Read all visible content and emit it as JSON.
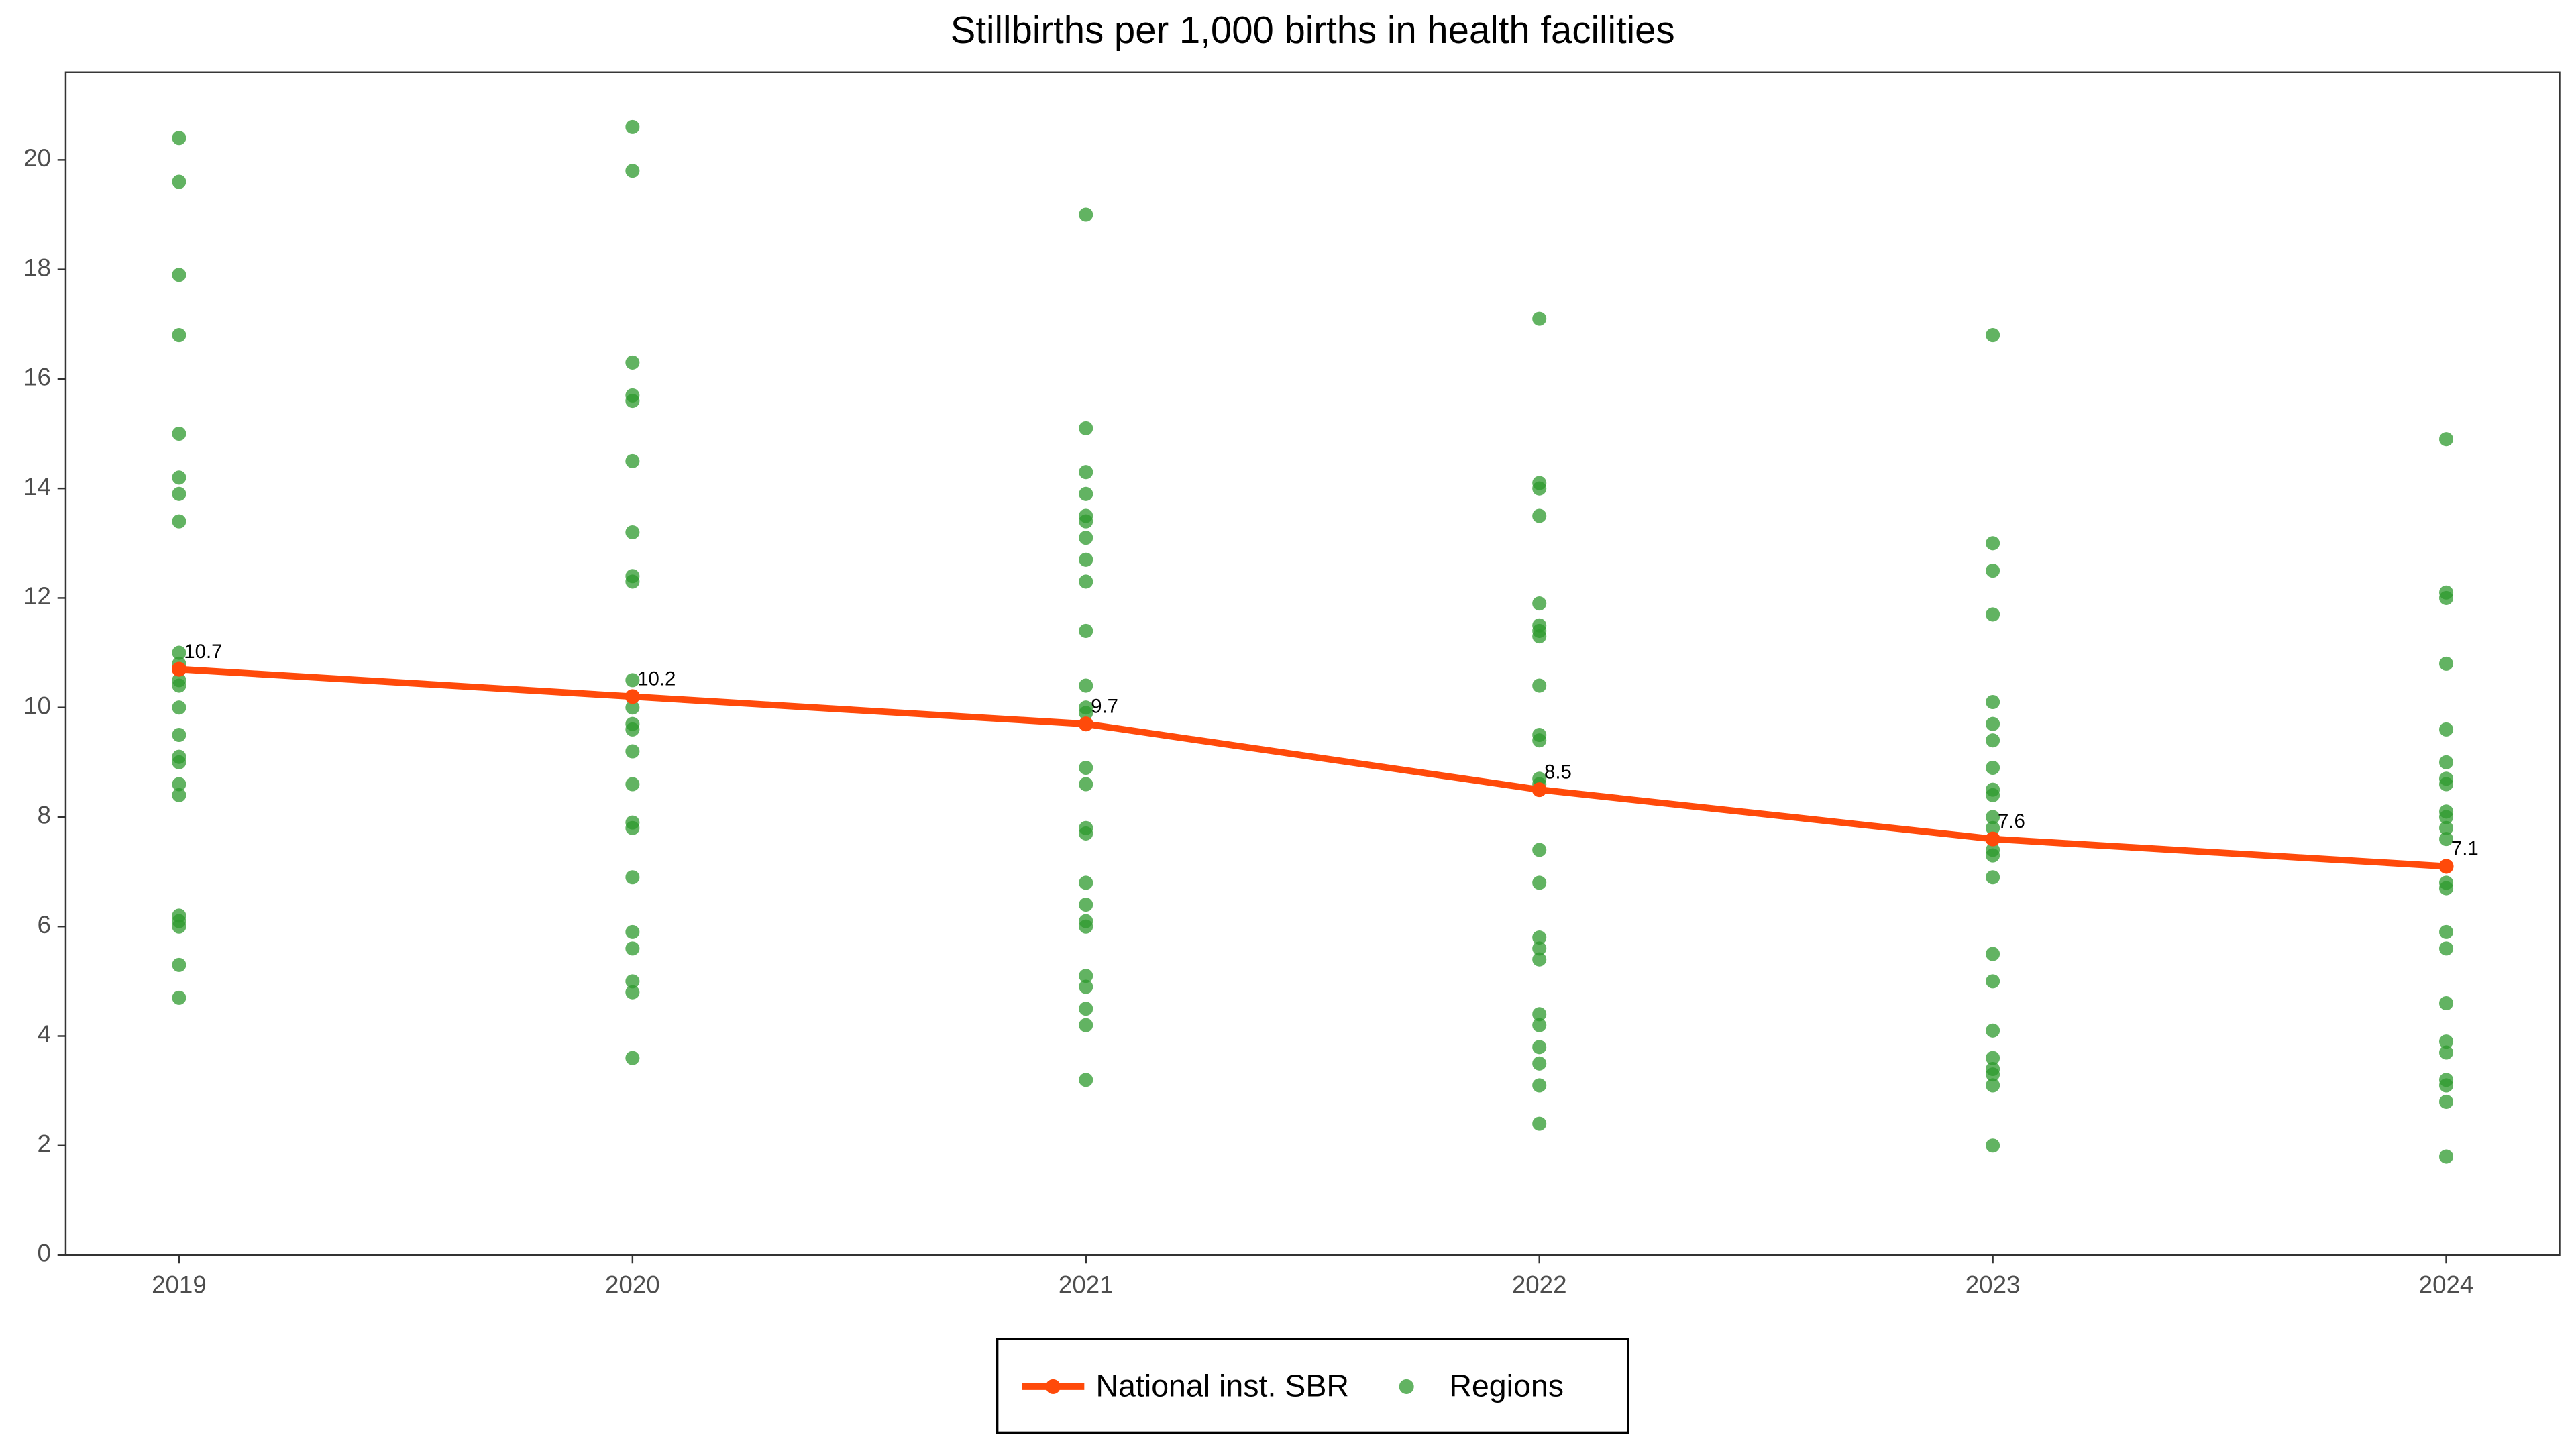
{
  "chart_data": {
    "type": "line",
    "title": "Stillbirths per 1,000 births in health facilities",
    "x": [
      2019,
      2020,
      2021,
      2022,
      2023,
      2024
    ],
    "xlim": [
      2018.75,
      2024.25
    ],
    "xticks": [
      2019,
      2020,
      2021,
      2022,
      2023,
      2024
    ],
    "ylim": [
      0,
      21.6
    ],
    "yticks": [
      0,
      2,
      4,
      6,
      8,
      10,
      12,
      14,
      16,
      18,
      20
    ],
    "legend": "bottom",
    "series": [
      {
        "name": "National inst. SBR",
        "color": "#ff4a0a",
        "values": [
          10.7,
          10.2,
          9.7,
          8.5,
          7.6,
          7.1
        ]
      },
      {
        "name": "Regions",
        "type": "scatter",
        "color": "#2e9a2e",
        "x": [
          2019,
          2019,
          2019,
          2019,
          2019,
          2019,
          2019,
          2019,
          2019,
          2019,
          2019,
          2019,
          2019,
          2019,
          2019,
          2019,
          2019,
          2019,
          2019,
          2019,
          2019,
          2019,
          2019,
          2020,
          2020,
          2020,
          2020,
          2020,
          2020,
          2020,
          2020,
          2020,
          2020,
          2020,
          2020,
          2020,
          2020,
          2020,
          2020,
          2020,
          2020,
          2020,
          2020,
          2020,
          2020,
          2020,
          2021,
          2021,
          2021,
          2021,
          2021,
          2021,
          2021,
          2021,
          2021,
          2021,
          2021,
          2021,
          2021,
          2021,
          2021,
          2021,
          2021,
          2021,
          2021,
          2021,
          2021,
          2021,
          2021,
          2021,
          2021,
          2021,
          2022,
          2022,
          2022,
          2022,
          2022,
          2022,
          2022,
          2022,
          2022,
          2022,
          2022,
          2022,
          2022,
          2022,
          2022,
          2022,
          2022,
          2022,
          2022,
          2022,
          2022,
          2022,
          2022,
          2022,
          2023,
          2023,
          2023,
          2023,
          2023,
          2023,
          2023,
          2023,
          2023,
          2023,
          2023,
          2023,
          2023,
          2023,
          2023,
          2023,
          2023,
          2023,
          2023,
          2023,
          2023,
          2023,
          2023,
          2024,
          2024,
          2024,
          2024,
          2024,
          2024,
          2024,
          2024,
          2024,
          2024,
          2024,
          2024,
          2024,
          2024,
          2024,
          2024,
          2024,
          2024,
          2024,
          2024,
          2024,
          2024,
          2024
        ],
        "values": [
          20.4,
          19.6,
          17.9,
          16.8,
          15.0,
          14.2,
          13.9,
          13.4,
          11.0,
          10.8,
          10.5,
          10.4,
          10.0,
          9.5,
          9.1,
          9.0,
          8.6,
          8.4,
          6.2,
          6.1,
          6.0,
          5.3,
          4.7,
          20.6,
          19.8,
          16.3,
          15.7,
          15.6,
          14.5,
          13.2,
          12.4,
          12.3,
          10.5,
          10.0,
          9.7,
          9.6,
          9.2,
          8.6,
          7.9,
          7.8,
          6.9,
          5.9,
          5.6,
          5.0,
          4.8,
          3.6,
          19.0,
          15.1,
          14.3,
          13.9,
          13.5,
          13.4,
          13.1,
          12.7,
          12.3,
          11.4,
          10.4,
          10.0,
          9.9,
          8.9,
          8.6,
          7.8,
          7.7,
          6.8,
          6.4,
          6.1,
          6.0,
          5.1,
          4.9,
          4.5,
          4.2,
          3.2,
          17.1,
          14.1,
          14.0,
          13.5,
          11.9,
          11.5,
          11.4,
          11.3,
          10.4,
          9.5,
          9.4,
          8.7,
          8.6,
          7.4,
          6.8,
          5.8,
          5.6,
          5.4,
          4.4,
          4.2,
          3.8,
          3.5,
          3.1,
          2.4,
          16.8,
          13.0,
          12.5,
          11.7,
          10.1,
          9.7,
          9.4,
          8.9,
          8.5,
          8.4,
          8.0,
          7.8,
          7.4,
          7.3,
          6.9,
          5.5,
          5.0,
          4.1,
          3.6,
          3.4,
          3.3,
          3.1,
          2.0,
          14.9,
          12.1,
          12.0,
          10.8,
          9.6,
          9.0,
          8.7,
          8.6,
          8.1,
          8.0,
          7.8,
          7.6,
          6.8,
          6.7,
          5.9,
          5.6,
          4.6,
          3.9,
          3.7,
          3.2,
          3.1,
          2.8,
          1.8
        ]
      }
    ]
  }
}
